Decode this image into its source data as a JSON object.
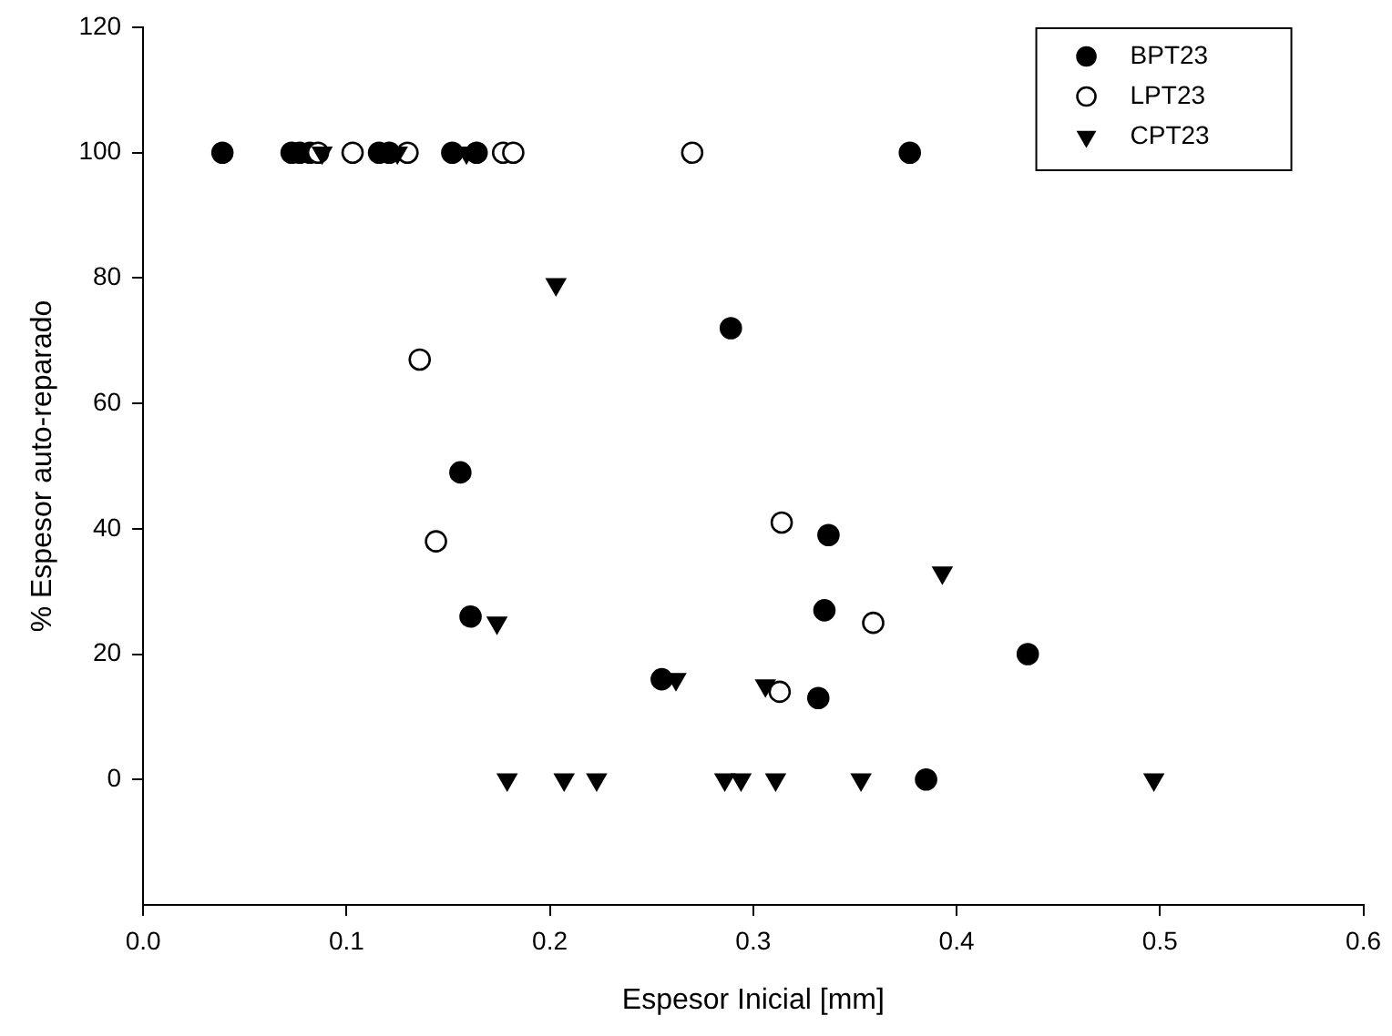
{
  "chart_data": {
    "type": "scatter",
    "xlabel": "Espesor Inicial [mm]",
    "ylabel": "% Espesor auto-reparado",
    "xlim": [
      0,
      0.6
    ],
    "xticks": [
      {
        "value": 0,
        "label": "0.0"
      },
      0.1,
      0.2,
      0.3,
      0.4,
      0.5,
      {
        "value": 0.6,
        "label": "0.6"
      }
    ],
    "ylim": [
      -20,
      120
    ],
    "yticks": [
      0,
      20,
      40,
      60,
      80,
      100,
      120
    ],
    "grid": false,
    "legend": "top right",
    "series": [
      {
        "name": "BPT23",
        "color": "#000000",
        "marker": "circle",
        "x": [
          0.039,
          0.073,
          0.077,
          0.082,
          0.116,
          0.121,
          0.152,
          0.164,
          0.377,
          0.289,
          0.156,
          0.337,
          0.335,
          0.161,
          0.255,
          0.332,
          0.385,
          0.435
        ],
        "values": [
          100,
          100,
          100,
          100,
          100,
          100,
          100,
          100,
          100,
          72,
          49,
          39,
          27,
          26,
          16,
          13,
          0,
          20
        ]
      },
      {
        "name": "LPT23",
        "color": "#ffffff",
        "marker": "circle",
        "x": [
          0.086,
          0.103,
          0.13,
          0.177,
          0.182,
          0.27,
          0.136,
          0.314,
          0.144,
          0.359,
          0.313
        ],
        "values": [
          100,
          100,
          100,
          100,
          100,
          100,
          67,
          41,
          38,
          25,
          14
        ]
      },
      {
        "name": "CPT23",
        "color": "#000000",
        "marker": "triangle",
        "x": [
          0.088,
          0.125,
          0.159,
          0.203,
          0.393,
          0.174,
          0.262,
          0.306,
          0.179,
          0.207,
          0.223,
          0.286,
          0.294,
          0.311,
          0.353,
          0.497
        ],
        "values": [
          100,
          100,
          100,
          79,
          33,
          25,
          16,
          15,
          0,
          0,
          0,
          0,
          0,
          0,
          0,
          0
        ]
      }
    ]
  }
}
